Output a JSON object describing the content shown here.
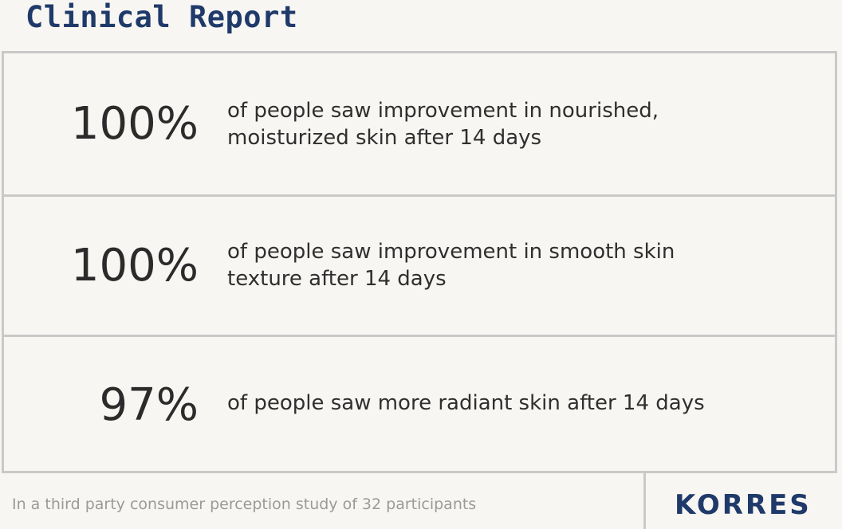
{
  "header": {
    "title": "Clinical Report"
  },
  "stats": [
    {
      "value": "100%",
      "description_lines": [
        "of people saw improvement in nourished,",
        "moisturized skin after 14 days"
      ]
    },
    {
      "value": "100%",
      "description_lines": [
        "of people saw improvement in smooth skin",
        "texture after 14 days"
      ]
    },
    {
      "value": "97%",
      "description_lines": [
        "of people saw more radiant skin after 14 days"
      ]
    }
  ],
  "footer": {
    "note": "In a third party consumer perception study of 32 participants",
    "brand": "KORRES"
  },
  "colors": {
    "brand_blue": "#1f3a6a",
    "background": "#f8f6f3",
    "divider": "#c9c9c9",
    "stat_text": "#2b2b2b",
    "note_text": "#9a9a9a"
  }
}
